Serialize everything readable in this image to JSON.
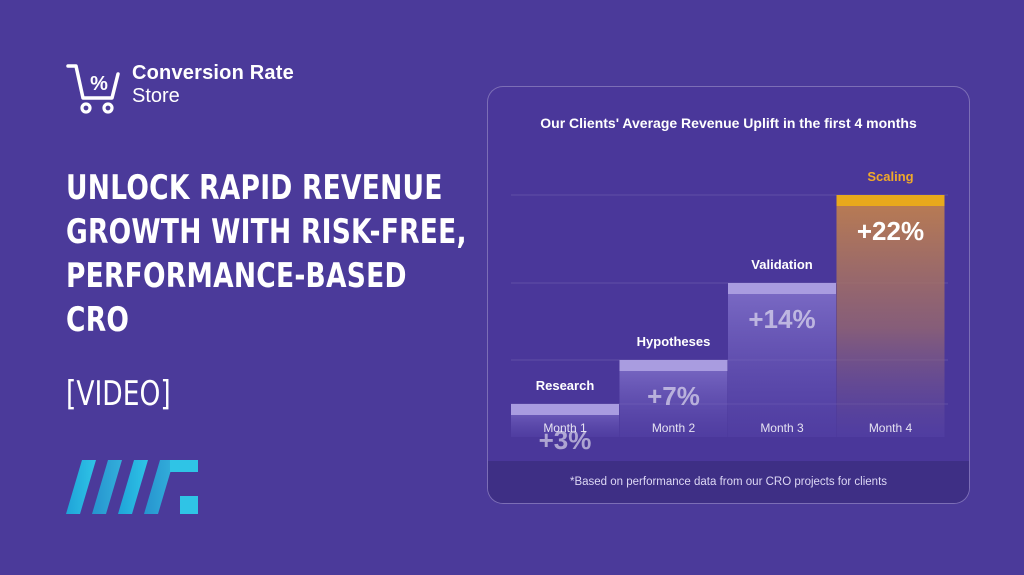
{
  "brand": {
    "name_line1": "Conversion Rate",
    "name_line2": "Store",
    "icon": "percent-cart-icon"
  },
  "headline": {
    "lines": [
      "UNLOCK RAPID REVENUE",
      "GROWTH WITH RISK-FREE,",
      "PERFORMANCE-BASED",
      "CRO"
    ],
    "tag": "[VIDEO]"
  },
  "partner_logo": {
    "icon": "striped-logo-mark-icon"
  },
  "colors": {
    "background": "#4b3a9a",
    "bar_light": "#a99ce0",
    "bar_accent": "#e8a91c",
    "accent_text": "#f0a92a"
  },
  "chart_data": {
    "type": "bar",
    "title": "Our Clients' Average Revenue Uplift in the first 4 months",
    "categories": [
      "Month 1",
      "Month 2",
      "Month 3",
      "Month 4"
    ],
    "stage_labels": [
      "Research",
      "Hypotheses",
      "Validation",
      "Scaling"
    ],
    "values": [
      3,
      7,
      14,
      22
    ],
    "value_labels": [
      "+3%",
      "+7%",
      "+14%",
      "+22%"
    ],
    "highlight_index": 3,
    "unit": "%",
    "footnote": "*Based on performance data from our CRO projects for clients"
  }
}
